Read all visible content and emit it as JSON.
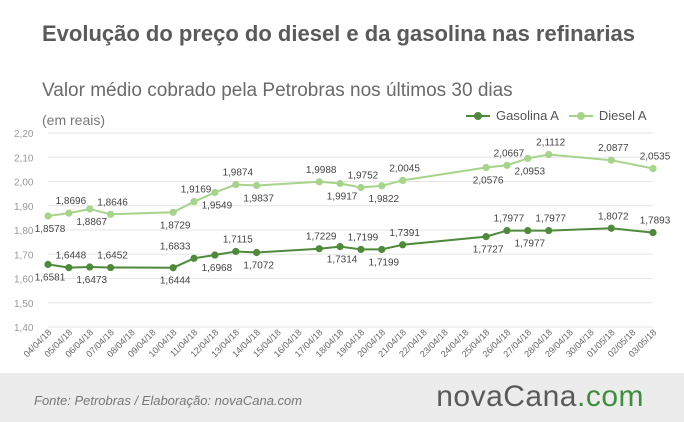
{
  "header": {
    "title": "Evolução do preço do diesel e da gasolina nas refinarias",
    "subtitle": "Valor médio cobrado pela Petrobras nos últimos 30 dias",
    "unit": "(em reais)"
  },
  "legend": {
    "items": [
      {
        "label": "Gasolina A",
        "color": "#4e8a3a"
      },
      {
        "label": "Diesel A",
        "color": "#a6d48a"
      }
    ]
  },
  "footer": {
    "source": "Fonte:  Petrobras  / Elaboração:  novaCana.com",
    "logo_main": "nova",
    "logo_brand": "Cana",
    "logo_ext": ".com"
  },
  "chart_data": {
    "type": "line",
    "title": "Evolução do preço do diesel e da gasolina nas refinarias",
    "subtitle": "Valor médio cobrado pela Petrobras nos últimos 30 dias",
    "ylabel": "(em reais)",
    "ylim": [
      1.4,
      2.2
    ],
    "yticks": [
      "1,40",
      "1,50",
      "1,60",
      "1,70",
      "1,80",
      "1,90",
      "2,00",
      "2,10",
      "2,20"
    ],
    "grid": true,
    "legend_position": "top-right",
    "categories": [
      "04/04/18",
      "05/04/18",
      "06/04/18",
      "07/04/18",
      "08/04/18",
      "09/04/18",
      "10/04/18",
      "11/04/18",
      "12/04/18",
      "13/04/18",
      "14/04/18",
      "15/04/18",
      "16/04/18",
      "17/04/18",
      "18/04/18",
      "19/04/18",
      "20/04/18",
      "21/04/18",
      "22/04/18",
      "23/04/18",
      "24/04/18",
      "25/04/18",
      "26/04/18",
      "27/04/18",
      "28/04/18",
      "29/04/18",
      "30/04/18",
      "01/05/18",
      "02/05/18",
      "03/05/18"
    ],
    "series": [
      {
        "name": "Gasolina A",
        "color": "#4e8a3a",
        "points": [
          {
            "x": "04/04/18",
            "y": 1.6581,
            "label": "1,6581",
            "pos": "below"
          },
          {
            "x": "05/04/18",
            "y": 1.6448,
            "label": "1,6448",
            "pos": "above"
          },
          {
            "x": "06/04/18",
            "y": 1.6473,
            "label": "1,6473",
            "pos": "below"
          },
          {
            "x": "07/04/18",
            "y": 1.6452,
            "label": "1,6452",
            "pos": "above"
          },
          {
            "x": "10/04/18",
            "y": 1.6444,
            "label": "1,6444",
            "pos": "below"
          },
          {
            "x": "10/04/18",
            "y": 1.6833,
            "label": "1,6833",
            "pos": "above",
            "hidden": true
          },
          {
            "x": "11/04/18",
            "y": 1.6833,
            "label": "",
            "pos": "none"
          },
          {
            "x": "12/04/18",
            "y": 1.6968,
            "label": "1,6968",
            "pos": "below"
          },
          {
            "x": "13/04/18",
            "y": 1.7115,
            "label": "1,7115",
            "pos": "above"
          },
          {
            "x": "14/04/18",
            "y": 1.7072,
            "label": "1,7072",
            "pos": "below"
          },
          {
            "x": "17/04/18",
            "y": 1.7229,
            "label": "1,7229",
            "pos": "above"
          },
          {
            "x": "18/04/18",
            "y": 1.7314,
            "label": "1,7314",
            "pos": "below"
          },
          {
            "x": "19/04/18",
            "y": 1.7199,
            "label": "1,7199",
            "pos": "above"
          },
          {
            "x": "20/04/18",
            "y": 1.7199,
            "label": "1,7199",
            "pos": "below"
          },
          {
            "x": "21/04/18",
            "y": 1.7391,
            "label": "1,7391",
            "pos": "above"
          },
          {
            "x": "25/04/18",
            "y": 1.7727,
            "label": "1,7727",
            "pos": "below"
          },
          {
            "x": "26/04/18",
            "y": 1.7977,
            "label": "1,7977",
            "pos": "above"
          },
          {
            "x": "27/04/18",
            "y": 1.7977,
            "label": "1,7977",
            "pos": "below"
          },
          {
            "x": "28/04/18",
            "y": 1.7977,
            "label": "1,7977",
            "pos": "above"
          },
          {
            "x": "01/05/18",
            "y": 1.8072,
            "label": "1,8072",
            "pos": "above"
          },
          {
            "x": "03/05/18",
            "y": 1.7893,
            "label": "1,7893",
            "pos": "above"
          }
        ]
      },
      {
        "name": "Diesel A",
        "color": "#a6d48a",
        "points": [
          {
            "x": "04/04/18",
            "y": 1.8578,
            "label": "1,8578",
            "pos": "below"
          },
          {
            "x": "05/04/18",
            "y": 1.8696,
            "label": "1,8696",
            "pos": "above"
          },
          {
            "x": "06/04/18",
            "y": 1.8867,
            "label": "1,8867",
            "pos": "below"
          },
          {
            "x": "07/04/18",
            "y": 1.8646,
            "label": "1,8646",
            "pos": "above"
          },
          {
            "x": "10/04/18",
            "y": 1.8729,
            "label": "1,8729",
            "pos": "below"
          },
          {
            "x": "11/04/18",
            "y": 1.9169,
            "label": "1,9169",
            "pos": "above"
          },
          {
            "x": "12/04/18",
            "y": 1.9549,
            "label": "1,9549",
            "pos": "below"
          },
          {
            "x": "13/04/18",
            "y": 1.9874,
            "label": "1,9874",
            "pos": "above"
          },
          {
            "x": "14/04/18",
            "y": 1.9837,
            "label": "1,9837",
            "pos": "below"
          },
          {
            "x": "17/04/18",
            "y": 1.9988,
            "label": "1,9988",
            "pos": "above"
          },
          {
            "x": "18/04/18",
            "y": 1.9917,
            "label": "1,9917",
            "pos": "below"
          },
          {
            "x": "19/04/18",
            "y": 1.9752,
            "label": "1,9752",
            "pos": "above"
          },
          {
            "x": "20/04/18",
            "y": 1.9822,
            "label": "1,9822",
            "pos": "below"
          },
          {
            "x": "21/04/18",
            "y": 2.0045,
            "label": "2,0045",
            "pos": "above"
          },
          {
            "x": "25/04/18",
            "y": 2.0576,
            "label": "2,0576",
            "pos": "below"
          },
          {
            "x": "26/04/18",
            "y": 2.0667,
            "label": "2,0667",
            "pos": "above"
          },
          {
            "x": "27/04/18",
            "y": 2.0953,
            "label": "2,0953",
            "pos": "below"
          },
          {
            "x": "28/04/18",
            "y": 2.1112,
            "label": "2,1112",
            "pos": "above"
          },
          {
            "x": "01/05/18",
            "y": 2.0877,
            "label": "2,0877",
            "pos": "above"
          },
          {
            "x": "03/05/18",
            "y": 2.0535,
            "label": "2,0535",
            "pos": "above"
          }
        ]
      }
    ]
  }
}
